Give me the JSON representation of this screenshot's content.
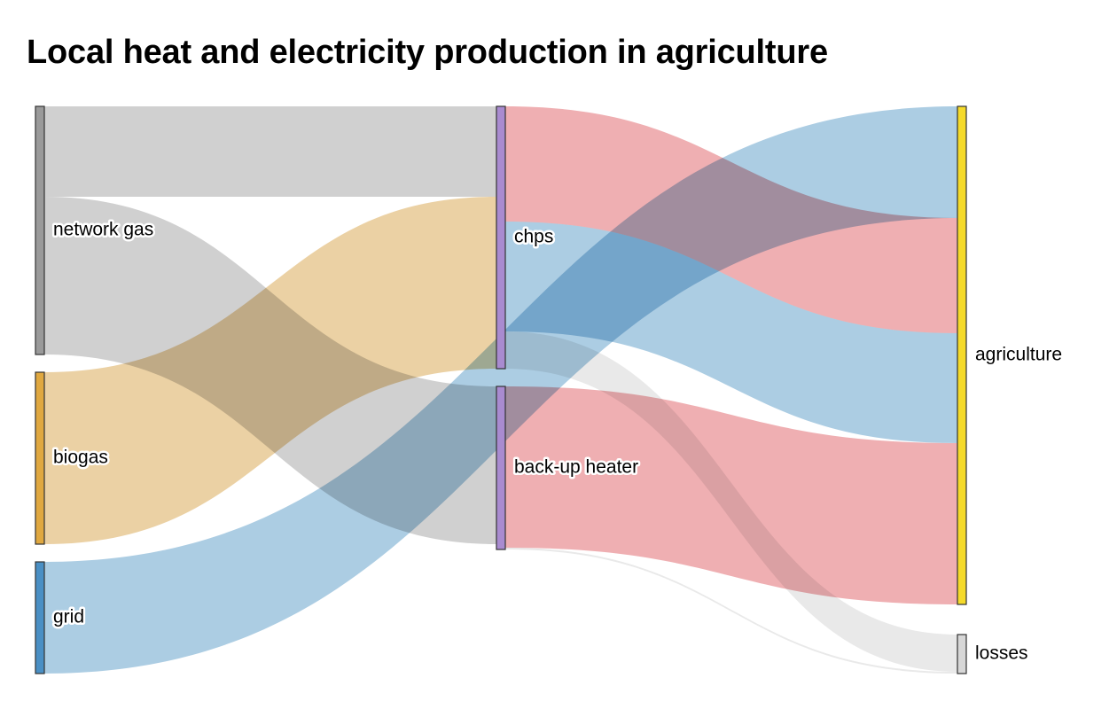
{
  "chart_data": {
    "type": "sankey",
    "title": "Local heat and electricity production in agriculture",
    "nodes": [
      {
        "id": "network gas",
        "label": "network gas",
        "color": "#9a9a9a",
        "column": 0
      },
      {
        "id": "biogas",
        "label": "biogas",
        "color": "#e0a840",
        "column": 0
      },
      {
        "id": "grid",
        "label": "grid",
        "color": "#4a8fc4",
        "column": 0
      },
      {
        "id": "chps",
        "label": "chps",
        "color": "#a98bd0",
        "column": 1
      },
      {
        "id": "back-up heater",
        "label": "back-up heater",
        "color": "#a98bd0",
        "column": 1
      },
      {
        "id": "agriculture",
        "label": "agriculture",
        "color": "#f5da2a",
        "column": 2
      },
      {
        "id": "losses",
        "label": "losses",
        "color": "#d7d7d7",
        "column": 2
      }
    ],
    "links": [
      {
        "source": "network gas",
        "target": "chps",
        "value": 51,
        "color": "#c8c8c8"
      },
      {
        "source": "network gas",
        "target": "back-up heater",
        "value": 89,
        "color": "#c8c8c8"
      },
      {
        "source": "biogas",
        "target": "chps",
        "value": 97,
        "color": "#e8c994"
      },
      {
        "source": "grid",
        "target": "agriculture",
        "value": 63,
        "color": "#9ec4de"
      },
      {
        "source": "chps",
        "target": "agriculture",
        "value": 65,
        "color": "#eca1a4"
      },
      {
        "source": "chps",
        "target": "agriculture",
        "value": 62,
        "color": "#9ec4de"
      },
      {
        "source": "chps",
        "target": "losses",
        "value": 21,
        "color": "#e5e5e5"
      },
      {
        "source": "back-up heater",
        "target": "agriculture",
        "value": 91,
        "color": "#eca1a4"
      },
      {
        "source": "back-up heater",
        "target": "losses",
        "value": 1,
        "color": "#e5e5e5"
      }
    ]
  }
}
